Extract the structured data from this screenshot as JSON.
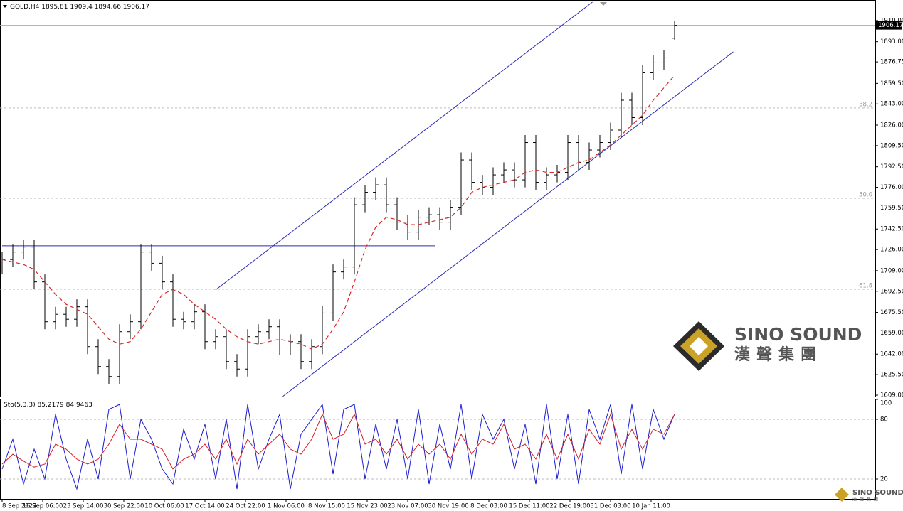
{
  "chart_data": [
    {
      "type": "ohlc",
      "title": "GOLD,H4",
      "x_labels": [
        "8 Sep 2022",
        "16 Sep 06:00",
        "23 Sep 14:00",
        "30 Sep 22:00",
        "10 Oct 06:00",
        "17 Oct 14:00",
        "24 Oct 22:00",
        "1 Nov 06:00",
        "8 Nov 15:00",
        "15 Nov 23:00",
        "23 Nov 07:00",
        "30 Nov 19:00",
        "8 Dec 03:00",
        "15 Dec 11:00",
        "22 Dec 19:00",
        "31 Dec 03:00",
        "10 Jan 11:00"
      ],
      "open": [
        1712,
        1718,
        1724,
        1728,
        1700,
        1668,
        1674,
        1670,
        1680,
        1648,
        1632,
        1624,
        1660,
        1668,
        1724,
        1715,
        1700,
        1670,
        1668,
        1676,
        1652,
        1656,
        1636,
        1630,
        1656,
        1660,
        1664,
        1647,
        1652,
        1636,
        1648,
        1675,
        1708,
        1712,
        1762,
        1772,
        1778,
        1762,
        1748,
        1740,
        1752,
        1754,
        1748,
        1760,
        1798,
        1780,
        1776,
        1786,
        1790,
        1782,
        1812,
        1780,
        1786,
        1788,
        1812,
        1796,
        1806,
        1812,
        1822,
        1846,
        1832,
        1868,
        1876,
        1895.81
      ],
      "high": [
        1724,
        1730,
        1734,
        1734,
        1706,
        1680,
        1680,
        1686,
        1686,
        1654,
        1638,
        1666,
        1674,
        1730,
        1730,
        1721,
        1706,
        1676,
        1682,
        1682,
        1662,
        1662,
        1642,
        1662,
        1666,
        1670,
        1670,
        1658,
        1658,
        1654,
        1681,
        1714,
        1718,
        1768,
        1778,
        1784,
        1784,
        1768,
        1754,
        1758,
        1760,
        1760,
        1766,
        1804,
        1804,
        1786,
        1792,
        1796,
        1796,
        1818,
        1818,
        1792,
        1794,
        1818,
        1818,
        1812,
        1818,
        1828,
        1852,
        1852,
        1874,
        1882,
        1886,
        1909.4
      ],
      "low": [
        1706,
        1712,
        1718,
        1694,
        1662,
        1662,
        1664,
        1664,
        1642,
        1626,
        1618,
        1618,
        1654,
        1662,
        1709,
        1694,
        1664,
        1662,
        1662,
        1646,
        1646,
        1630,
        1624,
        1624,
        1650,
        1654,
        1641,
        1641,
        1630,
        1630,
        1642,
        1669,
        1702,
        1706,
        1756,
        1766,
        1756,
        1742,
        1734,
        1734,
        1746,
        1742,
        1742,
        1754,
        1774,
        1770,
        1770,
        1780,
        1776,
        1776,
        1774,
        1774,
        1780,
        1782,
        1790,
        1790,
        1800,
        1806,
        1816,
        1826,
        1826,
        1862,
        1870,
        1894.66
      ],
      "close": [
        1718,
        1724,
        1728,
        1700,
        1668,
        1674,
        1670,
        1680,
        1648,
        1632,
        1624,
        1660,
        1668,
        1724,
        1715,
        1700,
        1670,
        1668,
        1676,
        1652,
        1656,
        1636,
        1630,
        1656,
        1660,
        1664,
        1647,
        1652,
        1636,
        1648,
        1675,
        1708,
        1712,
        1762,
        1772,
        1778,
        1762,
        1748,
        1740,
        1752,
        1754,
        1748,
        1760,
        1798,
        1780,
        1776,
        1786,
        1790,
        1782,
        1812,
        1780,
        1786,
        1788,
        1812,
        1796,
        1806,
        1812,
        1822,
        1846,
        1832,
        1868,
        1876,
        1880,
        1906.17
      ],
      "color": "#000000",
      "ma": {
        "color": "#d42a2a",
        "values": [
          1718,
          1716,
          1714,
          1710,
          1700,
          1690,
          1682,
          1678,
          1674,
          1664,
          1654,
          1650,
          1652,
          1662,
          1676,
          1690,
          1694,
          1690,
          1682,
          1676,
          1670,
          1662,
          1656,
          1652,
          1650,
          1652,
          1654,
          1652,
          1650,
          1646,
          1650,
          1662,
          1676,
          1700,
          1726,
          1744,
          1752,
          1750,
          1746,
          1746,
          1748,
          1750,
          1752,
          1760,
          1772,
          1776,
          1778,
          1780,
          1782,
          1788,
          1790,
          1788,
          1788,
          1792,
          1796,
          1798,
          1804,
          1810,
          1818,
          1826,
          1834,
          1846,
          1856,
          1866
        ]
      },
      "ylim": [
        1607.3,
        1924.8
      ],
      "yticks": [
        {
          "value": 1910,
          "label": "1910.00"
        },
        {
          "value": 1893,
          "label": "1893.00"
        },
        {
          "value": 1876.75,
          "label": "1876.75"
        },
        {
          "value": 1859.5,
          "label": "1859.50"
        },
        {
          "value": 1843,
          "label": "1843.00"
        },
        {
          "value": 1826,
          "label": "1826.00"
        },
        {
          "value": 1809.5,
          "label": "1809.50"
        },
        {
          "value": 1792.5,
          "label": "1792.50"
        },
        {
          "value": 1776,
          "label": "1776.00"
        },
        {
          "value": 1759.5,
          "label": "1759.50"
        },
        {
          "value": 1742.5,
          "label": "1742.50"
        },
        {
          "value": 1726,
          "label": "1726.00"
        },
        {
          "value": 1709,
          "label": "1709.00"
        },
        {
          "value": 1692.5,
          "label": "1692.50"
        },
        {
          "value": 1675.5,
          "label": "1675.50"
        },
        {
          "value": 1659,
          "label": "1659.00"
        },
        {
          "value": 1642,
          "label": "1642.00"
        },
        {
          "value": 1625.5,
          "label": "1625.50"
        },
        {
          "value": 1609,
          "label": "1609.00"
        }
      ],
      "levels": [
        {
          "value": 1839.8,
          "label": "38.2"
        },
        {
          "value": 1767.2,
          "label": "50.0"
        },
        {
          "value": 1694.1,
          "label": "61.8"
        }
      ],
      "trendlines": [
        {
          "x": [
            20,
            55.3
          ],
          "y": [
            1693.6,
            1924.8
          ],
          "color": "#2a2ab4"
        },
        {
          "x": [
            26.3,
            68.5
          ],
          "y": [
            1608,
            1884.9
          ],
          "color": "#2a2ab4"
        },
        {
          "x": [
            0,
            40.6
          ],
          "y": [
            1729,
            1729
          ],
          "color": "#2a2ab4"
        }
      ]
    },
    {
      "type": "line",
      "title": "Sto(5,3,3)",
      "ylim": [
        0,
        100
      ],
      "yticks": [
        100,
        80,
        20
      ],
      "series": [
        {
          "color": "#1c1cd0",
          "values": [
            30,
            60,
            15,
            50,
            20,
            85,
            40,
            10,
            60,
            20,
            90,
            95,
            20,
            80,
            60,
            30,
            15,
            70,
            40,
            75,
            20,
            80,
            10,
            95,
            30,
            60,
            85,
            10,
            65,
            80,
            95,
            25,
            90,
            95,
            20,
            75,
            30,
            80,
            20,
            90,
            15,
            75,
            30,
            95,
            20,
            85,
            60,
            80,
            30,
            75,
            15,
            95,
            20,
            85,
            15,
            90,
            60,
            95,
            25,
            95,
            30,
            90,
            60,
            85.2179
          ]
        },
        {
          "color": "#d0202a",
          "values": [
            35,
            45,
            38,
            32,
            35,
            55,
            50,
            40,
            35,
            40,
            55,
            75,
            60,
            60,
            55,
            50,
            30,
            40,
            45,
            55,
            40,
            60,
            35,
            60,
            45,
            55,
            65,
            50,
            45,
            60,
            85,
            60,
            65,
            85,
            55,
            60,
            45,
            60,
            40,
            55,
            45,
            55,
            40,
            65,
            45,
            60,
            55,
            75,
            50,
            55,
            40,
            65,
            40,
            65,
            40,
            70,
            55,
            85,
            50,
            70,
            50,
            70,
            65,
            84.9463
          ]
        }
      ]
    }
  ],
  "logo": {
    "name": "SINO SOUND",
    "chinese": "漢聲集團"
  }
}
